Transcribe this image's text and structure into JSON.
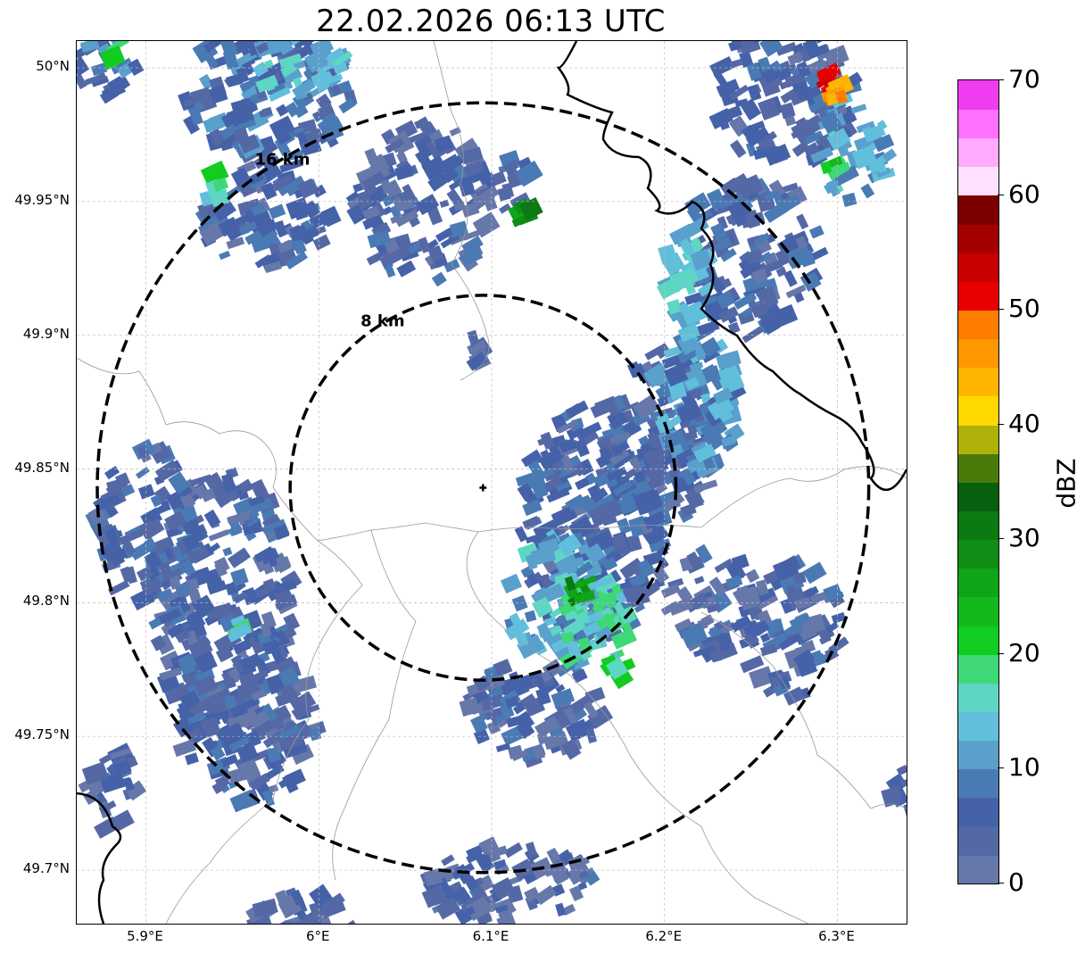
{
  "title": "22.02.2026 06:13 UTC",
  "map": {
    "lon_range": [
      5.86,
      6.34
    ],
    "lat_range": [
      49.68,
      50.01
    ],
    "center": {
      "lon": 6.095,
      "lat": 49.843
    },
    "rings": [
      {
        "label": "8 km",
        "radius_km": 8
      },
      {
        "label": "16 km",
        "radius_km": 16
      }
    ],
    "x_ticks": [
      {
        "lon": 5.9,
        "label": "5.9°E"
      },
      {
        "lon": 6.0,
        "label": "6°E"
      },
      {
        "lon": 6.1,
        "label": "6.1°E"
      },
      {
        "lon": 6.2,
        "label": "6.2°E"
      },
      {
        "lon": 6.3,
        "label": "6.3°E"
      }
    ],
    "y_ticks": [
      {
        "lat": 50.0,
        "label": "50°N"
      },
      {
        "lat": 49.95,
        "label": "49.95°N"
      },
      {
        "lat": 49.9,
        "label": "49.9°N"
      },
      {
        "lat": 49.85,
        "label": "49.85°N"
      },
      {
        "lat": 49.8,
        "label": "49.8°N"
      },
      {
        "lat": 49.75,
        "label": "49.75°N"
      },
      {
        "lat": 49.7,
        "label": "49.7°N"
      }
    ],
    "grid": true,
    "colors": {
      "ring": "#000000",
      "border": "#000000",
      "admin_line": "#999999",
      "grid": "#bbbbbb"
    }
  },
  "colorbar": {
    "label": "dBZ",
    "min": 0,
    "max": 70,
    "ticks": [
      {
        "value": 0,
        "label": "0"
      },
      {
        "value": 10,
        "label": "10"
      },
      {
        "value": 20,
        "label": "20"
      },
      {
        "value": 30,
        "label": "30"
      },
      {
        "value": 40,
        "label": "40"
      },
      {
        "value": 50,
        "label": "50"
      },
      {
        "value": 60,
        "label": "60"
      },
      {
        "value": 70,
        "label": "70"
      }
    ],
    "bins": [
      {
        "from": 0,
        "to": 2.5,
        "color": "#6677aa"
      },
      {
        "from": 2.5,
        "to": 5,
        "color": "#5568a6"
      },
      {
        "from": 5,
        "to": 7.5,
        "color": "#4562a8"
      },
      {
        "from": 7.5,
        "to": 10,
        "color": "#4a7ab4"
      },
      {
        "from": 10,
        "to": 12.5,
        "color": "#59a0cc"
      },
      {
        "from": 12.5,
        "to": 15,
        "color": "#62bfdc"
      },
      {
        "from": 15,
        "to": 17.5,
        "color": "#5ed6c4"
      },
      {
        "from": 17.5,
        "to": 20,
        "color": "#3ed876"
      },
      {
        "from": 20,
        "to": 22.5,
        "color": "#12cc22"
      },
      {
        "from": 22.5,
        "to": 25,
        "color": "#12b81c"
      },
      {
        "from": 25,
        "to": 27.5,
        "color": "#10a418"
      },
      {
        "from": 27.5,
        "to": 30,
        "color": "#0e8e14"
      },
      {
        "from": 30,
        "to": 32.5,
        "color": "#0b7a12"
      },
      {
        "from": 32.5,
        "to": 35,
        "color": "#07600e"
      },
      {
        "from": 35,
        "to": 37.5,
        "color": "#4a7a0a"
      },
      {
        "from": 37.5,
        "to": 40,
        "color": "#b0b00a"
      },
      {
        "from": 40,
        "to": 42.5,
        "color": "#ffd800"
      },
      {
        "from": 42.5,
        "to": 45,
        "color": "#ffb400"
      },
      {
        "from": 45,
        "to": 47.5,
        "color": "#ff9800"
      },
      {
        "from": 47.5,
        "to": 50,
        "color": "#ff7c00"
      },
      {
        "from": 50,
        "to": 52.5,
        "color": "#e80000"
      },
      {
        "from": 52.5,
        "to": 55,
        "color": "#c80000"
      },
      {
        "from": 55,
        "to": 57.5,
        "color": "#a40000"
      },
      {
        "from": 57.5,
        "to": 60,
        "color": "#7c0000"
      },
      {
        "from": 60,
        "to": 62.5,
        "color": "#ffe0ff"
      },
      {
        "from": 62.5,
        "to": 65,
        "color": "#ffaaff"
      },
      {
        "from": 65,
        "to": 67.5,
        "color": "#ff70ff"
      },
      {
        "from": 67.5,
        "to": 70,
        "color": "#f03cf0"
      }
    ]
  },
  "echo_clusters": [
    {
      "lon": 6.16,
      "lat": 49.83,
      "rlon": 0.045,
      "rlat": 0.045,
      "dbz": 6
    },
    {
      "lon": 6.2,
      "lat": 49.86,
      "rlon": 0.03,
      "rlat": 0.035,
      "dbz": 5
    },
    {
      "lon": 6.14,
      "lat": 49.8,
      "rlon": 0.03,
      "rlat": 0.025,
      "dbz": 12
    },
    {
      "lon": 6.16,
      "lat": 49.79,
      "rlon": 0.02,
      "rlat": 0.02,
      "dbz": 16
    },
    {
      "lon": 6.15,
      "lat": 49.805,
      "rlon": 0.006,
      "rlat": 0.004,
      "dbz": 28
    },
    {
      "lon": 6.17,
      "lat": 49.775,
      "rlon": 0.008,
      "rlat": 0.005,
      "dbz": 18
    },
    {
      "lon": 6.125,
      "lat": 49.76,
      "rlon": 0.04,
      "rlat": 0.018,
      "dbz": 5
    },
    {
      "lon": 6.22,
      "lat": 49.88,
      "rlon": 0.025,
      "rlat": 0.03,
      "dbz": 10
    },
    {
      "lon": 6.25,
      "lat": 49.93,
      "rlon": 0.04,
      "rlat": 0.03,
      "dbz": 6
    },
    {
      "lon": 6.215,
      "lat": 49.925,
      "rlon": 0.015,
      "rlat": 0.02,
      "dbz": 14
    },
    {
      "lon": 6.27,
      "lat": 49.99,
      "rlon": 0.04,
      "rlat": 0.03,
      "dbz": 5
    },
    {
      "lon": 6.31,
      "lat": 49.97,
      "rlon": 0.02,
      "rlat": 0.02,
      "dbz": 12
    },
    {
      "lon": 6.3,
      "lat": 49.963,
      "rlon": 0.005,
      "rlat": 0.004,
      "dbz": 21
    },
    {
      "lon": 6.295,
      "lat": 49.996,
      "rlon": 0.003,
      "rlat": 0.003,
      "dbz": 52
    },
    {
      "lon": 6.3,
      "lat": 49.991,
      "rlon": 0.003,
      "rlat": 0.003,
      "dbz": 45
    },
    {
      "lon": 5.97,
      "lat": 49.99,
      "rlon": 0.05,
      "rlat": 0.025,
      "dbz": 7
    },
    {
      "lon": 5.99,
      "lat": 50.0,
      "rlon": 0.025,
      "rlat": 0.012,
      "dbz": 14
    },
    {
      "lon": 5.88,
      "lat": 50.0,
      "rlon": 0.02,
      "rlat": 0.012,
      "dbz": 8
    },
    {
      "lon": 5.885,
      "lat": 50.005,
      "rlon": 0.008,
      "rlat": 0.006,
      "dbz": 21
    },
    {
      "lon": 5.97,
      "lat": 49.945,
      "rlon": 0.04,
      "rlat": 0.02,
      "dbz": 5
    },
    {
      "lon": 5.94,
      "lat": 49.955,
      "rlon": 0.004,
      "rlat": 0.006,
      "dbz": 18
    },
    {
      "lon": 5.945,
      "lat": 49.8,
      "rlon": 0.04,
      "rlat": 0.05,
      "dbz": 5
    },
    {
      "lon": 5.96,
      "lat": 49.755,
      "rlon": 0.04,
      "rlat": 0.03,
      "dbz": 5
    },
    {
      "lon": 5.9,
      "lat": 49.83,
      "rlon": 0.03,
      "rlat": 0.03,
      "dbz": 6
    },
    {
      "lon": 5.955,
      "lat": 49.79,
      "rlon": 0.004,
      "rlat": 0.004,
      "dbz": 16
    },
    {
      "lon": 6.275,
      "lat": 49.79,
      "rlon": 0.03,
      "rlat": 0.025,
      "dbz": 5
    },
    {
      "lon": 6.23,
      "lat": 49.8,
      "rlon": 0.03,
      "rlat": 0.02,
      "dbz": 4
    },
    {
      "lon": 6.11,
      "lat": 49.695,
      "rlon": 0.05,
      "rlat": 0.015,
      "dbz": 4
    },
    {
      "lon": 5.99,
      "lat": 49.68,
      "rlon": 0.03,
      "rlat": 0.012,
      "dbz": 4
    },
    {
      "lon": 6.06,
      "lat": 49.95,
      "rlon": 0.04,
      "rlat": 0.03,
      "dbz": 4
    },
    {
      "lon": 6.115,
      "lat": 49.955,
      "rlon": 0.012,
      "rlat": 0.012,
      "dbz": 6
    },
    {
      "lon": 6.12,
      "lat": 49.945,
      "rlon": 0.004,
      "rlat": 0.004,
      "dbz": 30
    },
    {
      "lon": 6.09,
      "lat": 49.895,
      "rlon": 0.005,
      "rlat": 0.006,
      "dbz": 4
    },
    {
      "lon": 5.88,
      "lat": 49.73,
      "rlon": 0.015,
      "rlat": 0.015,
      "dbz": 4
    },
    {
      "lon": 6.34,
      "lat": 49.73,
      "rlon": 0.01,
      "rlat": 0.008,
      "dbz": 4
    }
  ]
}
